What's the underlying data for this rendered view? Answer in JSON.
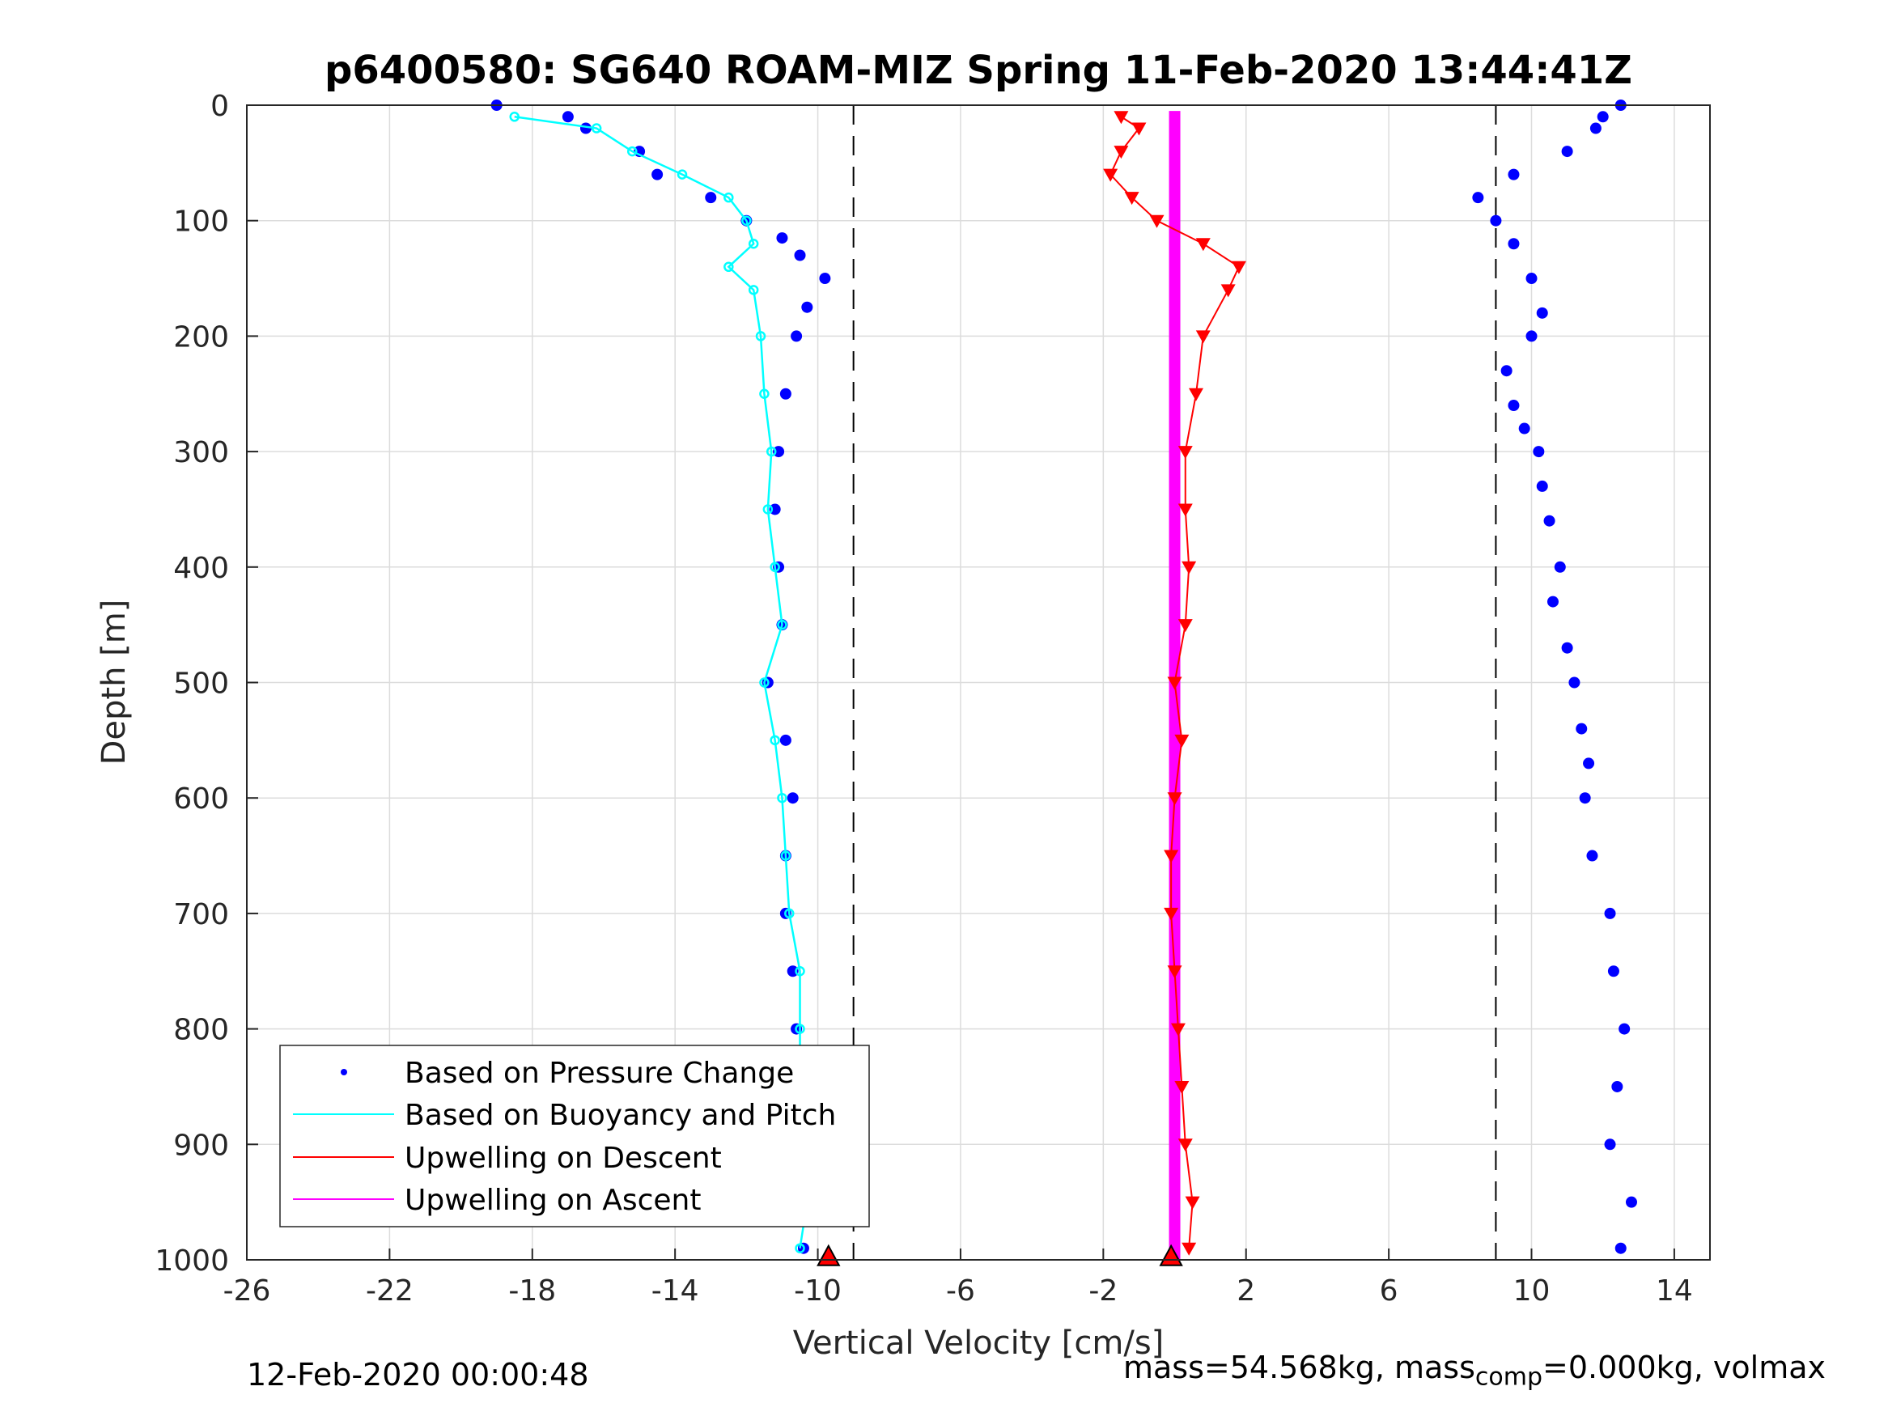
{
  "chart_data": {
    "type": "scatter",
    "title": "p6400580: SG640 ROAM-MIZ Spring 11-Feb-2020 13:44:41Z",
    "xlabel": "Vertical Velocity [cm/s]",
    "ylabel": "Depth [m]",
    "xlim": [
      -26,
      15
    ],
    "ylim": [
      0,
      1000
    ],
    "y_reversed": true,
    "grid": true,
    "legend_position": "bottom-left",
    "x_ticks": [
      "-26",
      "-22",
      "-18",
      "-14",
      "-10",
      "-6",
      "-2",
      "2",
      "6",
      "10",
      "14"
    ],
    "y_ticks": [
      "0",
      "100",
      "200",
      "300",
      "400",
      "500",
      "600",
      "700",
      "800",
      "900",
      "1000"
    ],
    "reference_lines_x": [
      -9,
      9
    ],
    "colors": {
      "pressure": "#0000ff",
      "buoyancy": "#00ffff",
      "upwelling_descent": "#ff0000",
      "upwelling_ascent": "#ff00ff"
    },
    "series": [
      {
        "name": "Based on Pressure Change",
        "marker": "dot",
        "descent": {
          "depth": [
            0,
            10,
            20,
            40,
            60,
            80,
            100,
            115,
            130,
            150,
            175,
            200,
            250,
            300,
            350,
            400,
            450,
            500,
            550,
            600,
            650,
            700,
            750,
            800,
            850,
            900,
            950,
            990
          ],
          "velocity": [
            -19,
            -17,
            -16.5,
            -15,
            -14.5,
            -13,
            -12,
            -11,
            -10.5,
            -9.8,
            -10.3,
            -10.6,
            -10.9,
            -11.1,
            -11.2,
            -11.1,
            -11,
            -11.4,
            -10.9,
            -10.7,
            -10.9,
            -10.9,
            -10.7,
            -10.6,
            -10.5,
            -10.4,
            -10.2,
            -10.4
          ]
        },
        "ascent": {
          "depth": [
            0,
            10,
            20,
            40,
            60,
            80,
            100,
            120,
            150,
            180,
            200,
            230,
            260,
            280,
            300,
            330,
            360,
            400,
            430,
            470,
            500,
            540,
            570,
            600,
            650,
            700,
            750,
            800,
            850,
            900,
            950,
            990
          ],
          "velocity": [
            12.5,
            12,
            11.8,
            11,
            9.5,
            8.5,
            9,
            9.5,
            10,
            10.3,
            10,
            9.3,
            9.5,
            9.8,
            10.2,
            10.3,
            10.5,
            10.8,
            10.6,
            11,
            11.2,
            11.4,
            11.6,
            11.5,
            11.7,
            12.2,
            12.3,
            12.6,
            12.4,
            12.2,
            12.8,
            12.5
          ]
        }
      },
      {
        "name": "Based on Buoyancy and Pitch",
        "marker": "circle-line",
        "depth": [
          10,
          20,
          40,
          60,
          80,
          100,
          120,
          140,
          160,
          200,
          250,
          300,
          350,
          400,
          450,
          500,
          550,
          600,
          650,
          700,
          750,
          800,
          850,
          900,
          950,
          990
        ],
        "velocity": [
          -18.5,
          -16.2,
          -15.2,
          -13.8,
          -12.5,
          -12,
          -11.8,
          -12.5,
          -11.8,
          -11.6,
          -11.5,
          -11.3,
          -11.4,
          -11.2,
          -11,
          -11.5,
          -11.2,
          -11,
          -10.9,
          -10.8,
          -10.5,
          -10.5,
          -10.5,
          -10.4,
          -10.3,
          -10.5
        ]
      },
      {
        "name": "Upwelling on Descent",
        "marker": "down-triangle",
        "depth": [
          10,
          20,
          40,
          60,
          80,
          100,
          120,
          140,
          160,
          200,
          250,
          300,
          350,
          400,
          450,
          500,
          550,
          600,
          650,
          700,
          750,
          800,
          850,
          900,
          950,
          990
        ],
        "velocity": [
          -1.5,
          -1,
          -1.5,
          -1.8,
          -1.2,
          -0.5,
          0.8,
          1.8,
          1.5,
          0.8,
          0.6,
          0.3,
          0.3,
          0.4,
          0.3,
          0,
          0.2,
          0,
          -0.1,
          -0.1,
          0,
          0.1,
          0.2,
          0.3,
          0.5,
          0.4
        ]
      },
      {
        "name": "Upwelling on Ascent",
        "marker": "line",
        "depth": [
          5,
          1000
        ],
        "velocity": [
          0,
          0
        ]
      }
    ],
    "apogee_markers": [
      {
        "velocity": -9.7,
        "depth": 997
      },
      {
        "velocity": -0.1,
        "depth": 997
      }
    ],
    "legend": [
      "Based on Pressure Change",
      "Based on Buoyancy and Pitch",
      "Upwelling on Descent",
      "Upwelling on Ascent"
    ]
  },
  "footer": {
    "timestamp": "12-Feb-2020 00:00:48",
    "mass_text": "mass=54.568kg, mass",
    "mass_sub": "comp",
    "mass_tail": "=0.000kg, volmax"
  }
}
